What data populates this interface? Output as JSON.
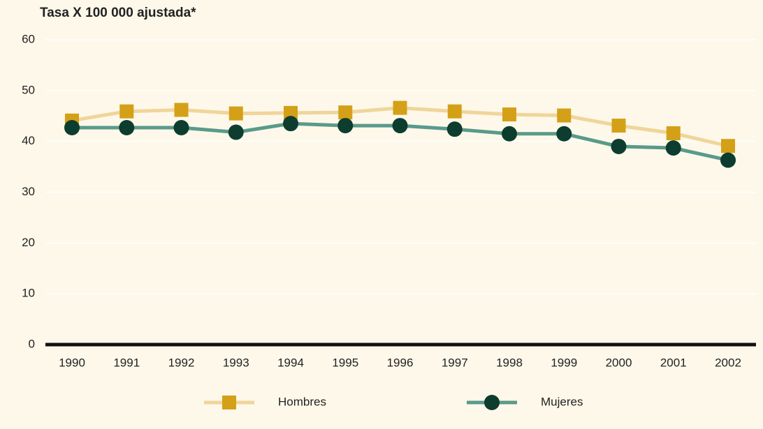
{
  "chart_data": {
    "type": "line",
    "title": "Tasa X 100 000 ajustada*",
    "categories": [
      "1990",
      "1991",
      "1992",
      "1993",
      "1994",
      "1995",
      "1996",
      "1997",
      "1998",
      "1999",
      "2000",
      "2001",
      "2002"
    ],
    "series": [
      {
        "name": "Hombres",
        "color": "#d4a017",
        "line_color": "#f0d59a",
        "marker": "square",
        "values": [
          44.1,
          45.9,
          46.2,
          45.5,
          45.6,
          45.7,
          46.6,
          45.9,
          45.3,
          45.1,
          43.1,
          41.6,
          39.1
        ]
      },
      {
        "name": "Mujeres",
        "color": "#0d3d2e",
        "line_color": "#5a9a8a",
        "marker": "circle",
        "values": [
          42.7,
          42.7,
          42.7,
          41.8,
          43.5,
          43.1,
          43.1,
          42.4,
          41.5,
          41.5,
          39.0,
          38.7,
          36.3
        ]
      }
    ],
    "ylim": [
      0,
      60
    ],
    "yticks": [
      0,
      10,
      20,
      30,
      40,
      50,
      60
    ],
    "grid": true,
    "legend": "bottom"
  }
}
